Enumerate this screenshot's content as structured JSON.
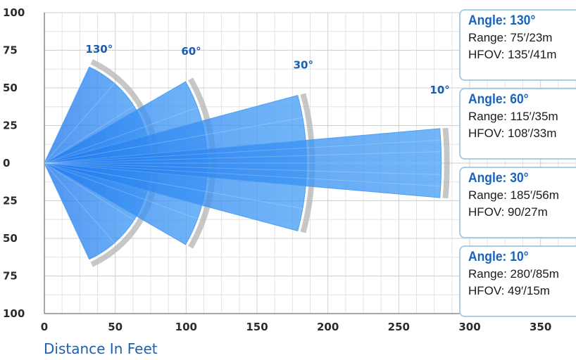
{
  "chart_data": {
    "type": "area",
    "xlabel": "Distance In Feet",
    "ylabel": "",
    "title": "",
    "xlim": [
      0,
      375
    ],
    "ylim": [
      -100,
      100
    ],
    "x_ticks": [
      0,
      50,
      100,
      150,
      200,
      250,
      300,
      350
    ],
    "y_ticks": [
      100,
      75,
      50,
      25,
      0,
      25,
      50,
      75,
      100
    ],
    "grid": true,
    "series": [
      {
        "name": "130°",
        "angle_deg": 130,
        "range_ft": 75,
        "color": "#2d8ff0"
      },
      {
        "name": "60°",
        "angle_deg": 60,
        "range_ft": 115,
        "color": "#2d8ff0"
      },
      {
        "name": "30°",
        "angle_deg": 30,
        "range_ft": 185,
        "color": "#2d8ff0"
      },
      {
        "name": "10°",
        "angle_deg": 10,
        "range_ft": 280,
        "color": "#2d8ff0"
      }
    ]
  },
  "info_cards": [
    {
      "title": "Angle: 130°",
      "range": "Range: 75′/23m",
      "hfov": "HFOV: 135′/41m"
    },
    {
      "title": "Angle: 60°",
      "range": "Range: 115′/35m",
      "hfov": "HFOV: 108′/33m"
    },
    {
      "title": "Angle: 30°",
      "range": "Range: 185′/56m",
      "hfov": "HFOV: 90/27m"
    },
    {
      "title": "Angle: 10°",
      "range": "Range: 280′/85m",
      "hfov": "HFOV: 49′/15m"
    }
  ]
}
